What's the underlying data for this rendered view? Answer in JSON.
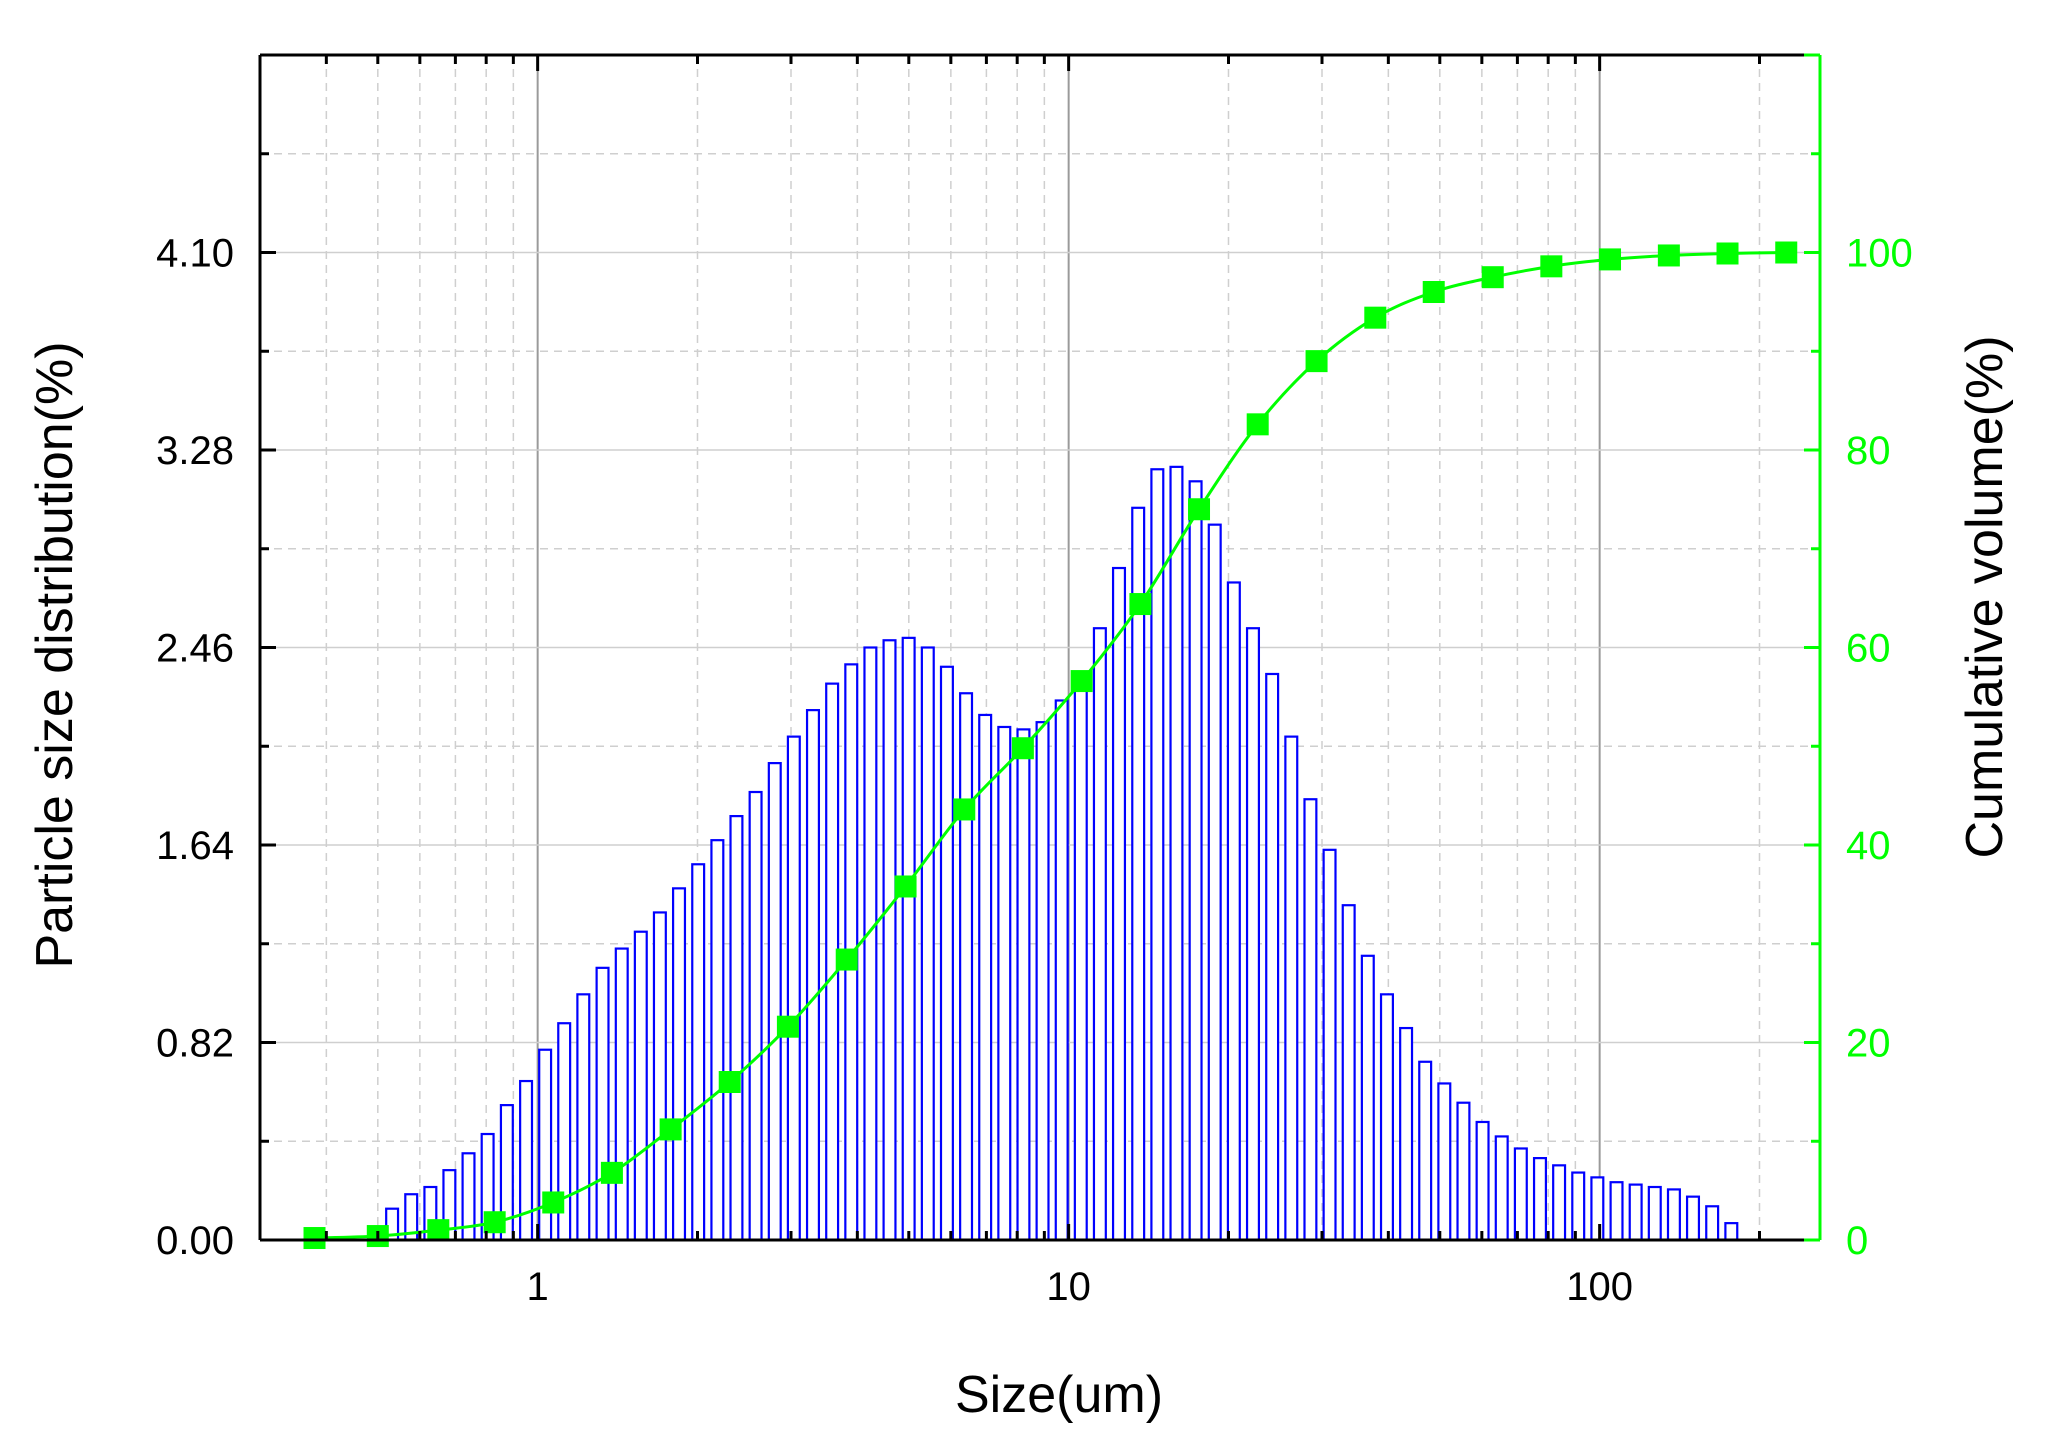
{
  "chart_data": {
    "type": "bar",
    "xlabel": "Size(um)",
    "ylabel": "Particle size distribution(%)",
    "y2label": "Cumulative volume(%)",
    "x_scale": "log",
    "xlim": [
      0.3,
      260
    ],
    "ylim": [
      0,
      4.92
    ],
    "y2lim": [
      0,
      120
    ],
    "x_ticks": [
      1,
      10,
      100
    ],
    "x_tick_labels": [
      "1",
      "10",
      "100"
    ],
    "y_ticks": [
      0,
      0.82,
      1.64,
      2.46,
      3.28,
      4.1
    ],
    "y_tick_labels": [
      "0.00",
      "0.82",
      "1.64",
      "2.46",
      "3.28",
      "4.10"
    ],
    "y2_ticks": [
      0,
      20,
      40,
      60,
      80,
      100
    ],
    "y2_tick_labels": [
      "0",
      "20",
      "40",
      "60",
      "80",
      "100"
    ],
    "grid": true,
    "colors": {
      "bars": "#0000ff",
      "cumulative": "#00ff00",
      "grid": "#cfcfcf",
      "axis": "#000000"
    },
    "series": [
      {
        "type": "bar",
        "axis": "left",
        "x": [
          0.532,
          0.578,
          0.628,
          0.682,
          0.741,
          0.805,
          0.875,
          0.951,
          1.033,
          1.122,
          1.219,
          1.325,
          1.44,
          1.564,
          1.699,
          1.846,
          2.006,
          2.18,
          2.368,
          2.573,
          2.796,
          3.037,
          3.3,
          3.586,
          3.896,
          4.233,
          4.599,
          4.997,
          5.429,
          5.899,
          6.409,
          6.963,
          7.565,
          8.22,
          8.93,
          9.703,
          10.54,
          11.45,
          12.44,
          13.52,
          14.69,
          15.96,
          17.34,
          18.84,
          20.47,
          22.24,
          24.17,
          26.26,
          28.53,
          31.0,
          33.68,
          36.59,
          39.76,
          43.2,
          46.93,
          50.99,
          55.4,
          60.19,
          65.4,
          71.05,
          77.2,
          83.88,
          91.13,
          99.01,
          107.6,
          116.9,
          127.0,
          138.0,
          149.9,
          162.9,
          177.0
        ],
        "values": [
          0.13,
          0.19,
          0.22,
          0.29,
          0.36,
          0.44,
          0.56,
          0.66,
          0.79,
          0.9,
          1.02,
          1.13,
          1.21,
          1.28,
          1.36,
          1.46,
          1.56,
          1.66,
          1.76,
          1.86,
          1.98,
          2.09,
          2.2,
          2.31,
          2.39,
          2.46,
          2.49,
          2.5,
          2.46,
          2.38,
          2.27,
          2.18,
          2.13,
          2.12,
          2.15,
          2.24,
          2.36,
          2.54,
          2.79,
          3.04,
          3.2,
          3.21,
          3.15,
          2.97,
          2.73,
          2.54,
          2.35,
          2.09,
          1.83,
          1.62,
          1.39,
          1.18,
          1.02,
          0.88,
          0.74,
          0.65,
          0.57,
          0.49,
          0.43,
          0.38,
          0.34,
          0.31,
          0.28,
          0.26,
          0.24,
          0.23,
          0.22,
          0.21,
          0.18,
          0.14,
          0.07
        ]
      },
      {
        "type": "line",
        "axis": "right",
        "marker": "square",
        "x": [
          0.38,
          0.5,
          0.65,
          0.83,
          1.07,
          1.38,
          1.78,
          2.3,
          2.96,
          3.82,
          4.93,
          6.36,
          8.2,
          10.58,
          13.65,
          17.6,
          22.7,
          29.3,
          37.8,
          48.7,
          62.9,
          81.1,
          104.6,
          135.0,
          174.1,
          224.6
        ],
        "values": [
          0.2,
          0.4,
          1.0,
          1.8,
          3.8,
          6.8,
          11.2,
          16.0,
          21.6,
          28.4,
          35.8,
          43.6,
          49.8,
          56.6,
          64.4,
          74.0,
          82.6,
          89.0,
          93.4,
          96.0,
          97.5,
          98.6,
          99.3,
          99.7,
          99.9,
          100.0
        ]
      }
    ]
  }
}
